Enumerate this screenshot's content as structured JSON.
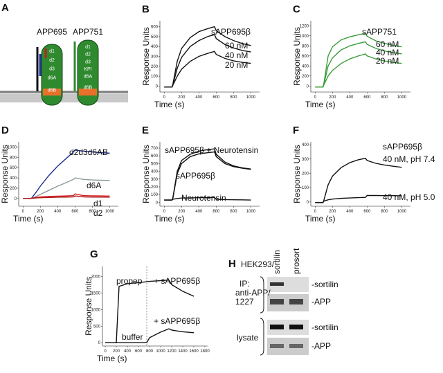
{
  "panel_a": {
    "letter": "A",
    "proteins": [
      {
        "name": "APP695",
        "domains": [
          "d1",
          "d2",
          "d3",
          "d6A",
          "d6B"
        ]
      },
      {
        "name": "APP751",
        "domains": [
          "d1",
          "d2",
          "d3",
          "KPI",
          "d6A",
          "d6B"
        ]
      }
    ]
  },
  "chart_data": [
    {
      "type": "line",
      "panel": "B",
      "y_label": "Response Units",
      "x_label": "Time (s)",
      "title": "sAPP695β",
      "x": [
        0,
        90,
        100,
        150,
        200,
        300,
        400,
        500,
        580,
        600,
        700,
        800,
        900,
        1000
      ],
      "series": [
        {
          "name": "60 nM",
          "color": "#111111",
          "values": [
            -10,
            -10,
            20,
            250,
            380,
            490,
            550,
            580,
            600,
            560,
            500,
            460,
            430,
            410
          ]
        },
        {
          "name": "40 nM",
          "color": "#111111",
          "values": [
            -10,
            -10,
            15,
            180,
            290,
            400,
            460,
            500,
            520,
            480,
            420,
            385,
            360,
            345
          ]
        },
        {
          "name": "20 nM",
          "color": "#111111",
          "values": [
            -10,
            -10,
            10,
            100,
            170,
            250,
            300,
            330,
            350,
            320,
            280,
            255,
            240,
            230
          ]
        }
      ],
      "xlim": [
        -50,
        1100
      ],
      "ylim": [
        -60,
        660
      ],
      "xticks": [
        0,
        200,
        400,
        600,
        800,
        1000
      ],
      "yticks": [
        0,
        100,
        200,
        300,
        400,
        500,
        600
      ]
    },
    {
      "type": "line",
      "panel": "C",
      "y_label": "Response Units",
      "x_label": "Time (s)",
      "title": "sAPP751",
      "x": [
        0,
        90,
        100,
        150,
        200,
        300,
        400,
        500,
        580,
        600,
        700,
        800,
        900,
        1000
      ],
      "series": [
        {
          "name": "60 nM",
          "color": "#3a9c3a",
          "values": [
            -20,
            -20,
            40,
            600,
            780,
            920,
            980,
            1020,
            1050,
            990,
            900,
            850,
            810,
            780
          ]
        },
        {
          "name": "40 nM",
          "color": "#3a9c3a",
          "values": [
            -20,
            -20,
            30,
            400,
            560,
            720,
            800,
            850,
            880,
            830,
            750,
            700,
            665,
            640
          ]
        },
        {
          "name": "20 nM",
          "color": "#3a9c3a",
          "values": [
            -20,
            -20,
            20,
            200,
            310,
            450,
            540,
            600,
            640,
            600,
            540,
            500,
            470,
            450
          ]
        }
      ],
      "xlim": [
        -50,
        1100
      ],
      "ylim": [
        -120,
        1300
      ],
      "xticks": [
        0,
        200,
        400,
        600,
        800,
        1000
      ],
      "yticks": [
        0,
        200,
        400,
        600,
        800,
        1000,
        1200
      ]
    },
    {
      "type": "line",
      "panel": "D",
      "y_label": "Response Units",
      "x_label": "Time (s)",
      "x": [
        0,
        90,
        100,
        150,
        200,
        300,
        400,
        500,
        580,
        600,
        700,
        800,
        900,
        1000
      ],
      "series": [
        {
          "name": "d2d3d6AB",
          "color": "#1f2f8f",
          "values": [
            0,
            0,
            10,
            120,
            240,
            450,
            630,
            780,
            900,
            940,
            920,
            905,
            890,
            880
          ]
        },
        {
          "name": "d6A",
          "color": "#8a9a9a",
          "values": [
            0,
            0,
            5,
            40,
            80,
            160,
            240,
            310,
            370,
            400,
            370,
            360,
            355,
            350
          ]
        },
        {
          "name": "d1",
          "color": "#d42020",
          "values": [
            0,
            0,
            5,
            20,
            30,
            40,
            45,
            50,
            55,
            90,
            55,
            52,
            50,
            48
          ]
        },
        {
          "name": "d2",
          "color": "#b01818",
          "values": [
            0,
            0,
            2,
            10,
            15,
            20,
            25,
            28,
            30,
            50,
            30,
            28,
            27,
            26
          ]
        }
      ],
      "xlim": [
        -50,
        1100
      ],
      "ylim": [
        -150,
        1100
      ],
      "xticks": [
        0,
        200,
        400,
        600,
        800,
        1000
      ],
      "yticks": [
        0,
        200,
        400,
        600,
        800,
        1000
      ]
    },
    {
      "type": "line",
      "panel": "E",
      "y_label": "Response Units",
      "x_label": "Time (s)",
      "x": [
        0,
        90,
        100,
        150,
        200,
        300,
        400,
        500,
        580,
        600,
        700,
        800,
        900,
        1000
      ],
      "series": [
        {
          "name": "sAPP695β + Neurotensin",
          "color": "#111111",
          "values": [
            30,
            30,
            60,
            400,
            540,
            620,
            660,
            680,
            690,
            620,
            520,
            470,
            445,
            430
          ]
        },
        {
          "name": "sAPP695β",
          "color": "#111111",
          "values": [
            30,
            30,
            55,
            370,
            500,
            590,
            625,
            640,
            650,
            590,
            500,
            460,
            440,
            425
          ]
        },
        {
          "name": "Neurotensin",
          "color": "#111111",
          "values": [
            30,
            30,
            40,
            50,
            55,
            58,
            60,
            62,
            63,
            40,
            35,
            33,
            32,
            30
          ]
        }
      ],
      "xlim": [
        -50,
        1100
      ],
      "ylim": [
        -50,
        780
      ],
      "xticks": [
        0,
        200,
        400,
        600,
        800,
        1000
      ],
      "yticks": [
        0,
        100,
        200,
        300,
        400,
        500,
        600,
        700
      ]
    },
    {
      "type": "line",
      "panel": "F",
      "title": "sAPP695β",
      "y_label": "Response Units",
      "x_label": "Time (s)",
      "x": [
        0,
        90,
        100,
        150,
        200,
        300,
        400,
        500,
        580,
        600,
        700,
        800,
        900,
        1000
      ],
      "series": [
        {
          "name": "40 nM, pH 7.4",
          "color": "#111111",
          "values": [
            -5,
            -5,
            10,
            120,
            180,
            240,
            275,
            295,
            305,
            290,
            270,
            258,
            250,
            242
          ]
        },
        {
          "name": "40 nM, pH 5.0",
          "color": "#111111",
          "values": [
            -5,
            -5,
            5,
            15,
            20,
            25,
            28,
            30,
            32,
            45,
            45,
            44,
            44,
            43
          ]
        }
      ],
      "xlim": [
        -50,
        1100
      ],
      "ylim": [
        -30,
        420
      ],
      "xticks": [
        0,
        200,
        400,
        600,
        800,
        1000
      ],
      "yticks": [
        0,
        100,
        200,
        300,
        400
      ]
    },
    {
      "type": "line",
      "panel": "G",
      "y_label": "Response Units",
      "x_label": "Time (s)",
      "vline": 750,
      "annotations": [
        "propep",
        "+ sAPP695β",
        "+ sAPP695β",
        "buffer"
      ],
      "x": [
        0,
        200,
        250,
        400,
        700,
        750,
        800,
        1000,
        1150,
        1200,
        1400,
        1600
      ],
      "series": [
        {
          "color": "#111111",
          "values": [
            0,
            0,
            1700,
            1780,
            1830,
            1840,
            1850,
            1870,
            1890,
            1750,
            1550,
            1400
          ]
        },
        {
          "color": "#111111",
          "values": [
            0,
            0,
            0,
            0,
            0,
            0,
            150,
            320,
            420,
            380,
            330,
            300
          ]
        }
      ],
      "xlim": [
        -50,
        1850
      ],
      "ylim": [
        -100,
        2300
      ],
      "xticks": [
        0,
        200,
        400,
        600,
        800,
        1000,
        1200,
        1400,
        1600,
        1800
      ],
      "yticks": [
        0,
        500,
        1000,
        1500,
        2000
      ]
    }
  ],
  "panel_h": {
    "letter": "H",
    "cell_line": "HEK293/",
    "lanes": [
      "sortilin",
      "prosort"
    ],
    "ip_label": [
      "IP:",
      "anti-APP/",
      "1227"
    ],
    "ip_blots": [
      "-sortilin",
      "-APP"
    ],
    "lysate_label": "lysate",
    "lysate_blots": [
      "-sortilin",
      "-APP"
    ]
  }
}
